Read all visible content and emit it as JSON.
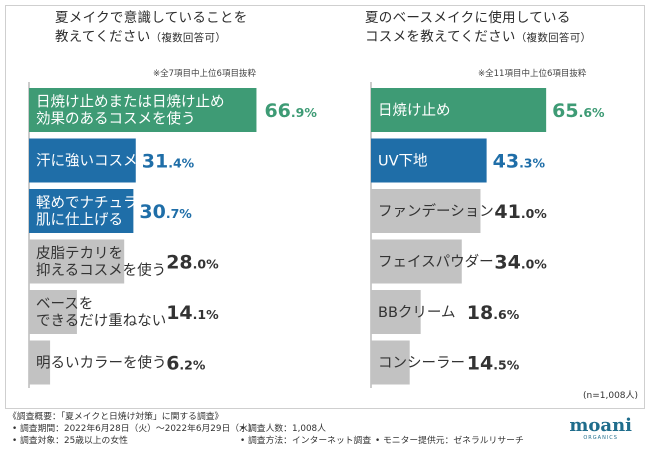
{
  "chart_data": [
    {
      "type": "bar",
      "orientation": "horizontal",
      "title_line1": "夏メイクで意識していることを",
      "title_line2": "教えてください",
      "title_suffix": "（複数回答可）",
      "note": "※全7項目中上位6項目抜粋",
      "bars": [
        {
          "label_lines": [
            "日焼け止めまたは日焼け止め",
            "効果のあるコスメを使う"
          ],
          "value": 66.9,
          "display_int": "66",
          "display_dec": ".9%",
          "color": "#3e9b75",
          "text_color": "#ffffff",
          "value_color": "#3e9b75"
        },
        {
          "label_lines": [
            "汗に強いコスメを使う"
          ],
          "value": 31.4,
          "display_int": "31",
          "display_dec": ".4%",
          "color": "#1f6ea8",
          "text_color": "#ffffff",
          "value_color": "#1f6ea8"
        },
        {
          "label_lines": [
            "軽めでナチュラルな",
            "肌に仕上げる"
          ],
          "value": 30.7,
          "display_int": "30",
          "display_dec": ".7%",
          "color": "#1f6ea8",
          "text_color": "#ffffff",
          "value_color": "#1f6ea8"
        },
        {
          "label_lines": [
            "皮脂テカリを",
            "抑えるコスメを使う"
          ],
          "value": 28.0,
          "display_int": "28",
          "display_dec": ".0%",
          "color": "#c2c2c2",
          "text_color": "#333333",
          "value_color": "#333333"
        },
        {
          "label_lines": [
            "ベースを",
            "できるだけ重ねない"
          ],
          "value": 14.1,
          "display_int": "14",
          "display_dec": ".1%",
          "color": "#c2c2c2",
          "text_color": "#333333",
          "value_color": "#333333"
        },
        {
          "label_lines": [
            "明るいカラーを使う"
          ],
          "value": 6.2,
          "display_int": "6",
          "display_dec": ".2%",
          "color": "#c2c2c2",
          "text_color": "#333333",
          "value_color": "#333333"
        }
      ]
    },
    {
      "type": "bar",
      "orientation": "horizontal",
      "title_line1": "夏のベースメイクに使用している",
      "title_line2": "コスメを教えてください",
      "title_suffix": "（複数回答可）",
      "note": "※全11項目中上位6項目抜粋",
      "bars": [
        {
          "label_lines": [
            "日焼け止め"
          ],
          "value": 65.6,
          "display_int": "65",
          "display_dec": ".6%",
          "color": "#3e9b75",
          "text_color": "#ffffff",
          "value_color": "#3e9b75"
        },
        {
          "label_lines": [
            "UV下地"
          ],
          "value": 43.3,
          "display_int": "43",
          "display_dec": ".3%",
          "color": "#1f6ea8",
          "text_color": "#ffffff",
          "value_color": "#1f6ea8"
        },
        {
          "label_lines": [
            "ファンデーション"
          ],
          "value": 41.0,
          "display_int": "41",
          "display_dec": ".0%",
          "color": "#c2c2c2",
          "text_color": "#333333",
          "value_color": "#333333"
        },
        {
          "label_lines": [
            "フェイスパウダー"
          ],
          "value": 34.0,
          "display_int": "34",
          "display_dec": ".0%",
          "color": "#c2c2c2",
          "text_color": "#333333",
          "value_color": "#333333"
        },
        {
          "label_lines": [
            "BBクリーム"
          ],
          "value": 18.6,
          "display_int": "18",
          "display_dec": ".6%",
          "color": "#c2c2c2",
          "text_color": "#333333",
          "value_color": "#333333"
        },
        {
          "label_lines": [
            "コンシーラー"
          ],
          "value": 14.5,
          "display_int": "14",
          "display_dec": ".5%",
          "color": "#c2c2c2",
          "text_color": "#333333",
          "value_color": "#333333"
        }
      ],
      "sample_note": "(n=1,008人)"
    }
  ],
  "footer": {
    "heading": "《調査概要：「夏メイクと日焼け対策」に関する調査》",
    "period": "• 調査期間：2022年6月28日（火）～2022年6月29日（水）",
    "count": "• 調査人数：1,008人",
    "target": "• 調査対象：25歳以上の女性",
    "method": "• 調査方法：インターネット調査",
    "provider": "• モニター提供元：ゼネラルリサーチ"
  },
  "logo": {
    "main": "moani",
    "sub": "ORGANICS"
  },
  "colors": {
    "green": "#3e9b75",
    "blue": "#1f6ea8",
    "gray": "#c2c2c2",
    "axis": "#9a9a9a"
  }
}
